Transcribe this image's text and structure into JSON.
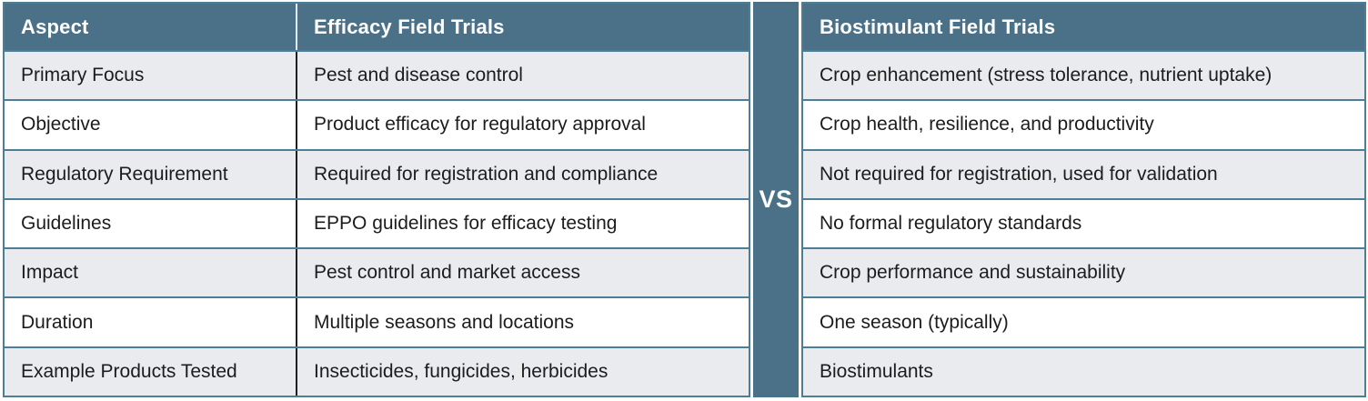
{
  "table": {
    "headers": {
      "aspect": "Aspect",
      "efficacy": "Efficacy Field Trials",
      "biostimulant": "Biostimulant Field Trials"
    },
    "vs_label": "VS",
    "rows": [
      {
        "aspect": "Primary Focus",
        "efficacy": "Pest and disease control",
        "biostimulant": "Crop enhancement (stress tolerance, nutrient uptake)"
      },
      {
        "aspect": "Objective",
        "efficacy": "Product efficacy for regulatory approval",
        "biostimulant": "Crop health, resilience, and productivity"
      },
      {
        "aspect": "Regulatory Requirement",
        "efficacy": "Required for registration and compliance",
        "biostimulant": "Not required for registration, used for validation"
      },
      {
        "aspect": "Guidelines",
        "efficacy": "EPPO guidelines for efficacy testing",
        "biostimulant": "No formal regulatory standards"
      },
      {
        "aspect": "Impact",
        "efficacy": "Pest control and market access",
        "biostimulant": "Crop performance and sustainability"
      },
      {
        "aspect": "Duration",
        "efficacy": "Multiple seasons and locations",
        "biostimulant": "One season (typically)"
      },
      {
        "aspect": "Example Products Tested",
        "efficacy": "Insecticides, fungicides, herbicides",
        "biostimulant": "Biostimulants"
      }
    ],
    "colors": {
      "header_bg": "#4a7187",
      "border": "#4e7d96",
      "row_alt_bg": "#e9ebee",
      "row_bg": "#ffffff",
      "header_text": "#ffffff",
      "body_text": "#1c1c1c",
      "aspect_divider": "#1f1f1f"
    }
  },
  "chart_data": {
    "type": "table",
    "title": "Efficacy Field Trials vs Biostimulant Field Trials",
    "columns": [
      "Aspect",
      "Efficacy Field Trials",
      "Biostimulant Field Trials"
    ],
    "rows": [
      [
        "Primary Focus",
        "Pest and disease control",
        "Crop enhancement (stress tolerance, nutrient uptake)"
      ],
      [
        "Objective",
        "Product efficacy for regulatory approval",
        "Crop health, resilience, and productivity"
      ],
      [
        "Regulatory Requirement",
        "Required for registration and compliance",
        "Not required for registration, used for validation"
      ],
      [
        "Guidelines",
        "EPPO guidelines for efficacy testing",
        "No formal regulatory standards"
      ],
      [
        "Impact",
        "Pest control and market access",
        "Crop performance and sustainability"
      ],
      [
        "Duration",
        "Multiple seasons and locations",
        "One season (typically)"
      ],
      [
        "Example Products Tested",
        "Insecticides, fungicides, herbicides",
        "Biostimulants"
      ]
    ],
    "layout": "two tables separated by a vertical VS banner; header row dark slate blue; body rows alternate light gray and white"
  }
}
